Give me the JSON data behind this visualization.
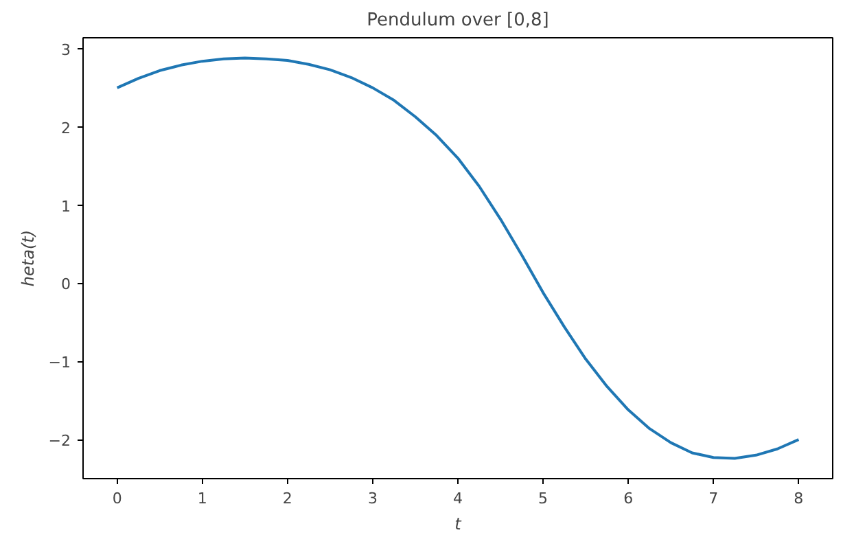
{
  "chart_data": {
    "type": "line",
    "title": "Pendulum over [0,8]",
    "xlabel": "t",
    "ylabel": "heta(t)",
    "x": [
      0,
      0.25,
      0.5,
      0.75,
      1,
      1.25,
      1.5,
      1.75,
      2,
      2.25,
      2.5,
      2.75,
      3,
      3.25,
      3.5,
      3.75,
      4,
      4.25,
      4.5,
      4.75,
      5,
      5.25,
      5.5,
      5.75,
      6,
      6.25,
      6.5,
      6.75,
      7,
      7.25,
      7.5,
      7.75,
      8
    ],
    "series": [
      {
        "color": "#1f77b4",
        "values": [
          2.5,
          2.62,
          2.72,
          2.79,
          2.84,
          2.87,
          2.88,
          2.87,
          2.85,
          2.8,
          2.73,
          2.63,
          2.5,
          2.34,
          2.13,
          1.89,
          1.6,
          1.24,
          0.82,
          0.36,
          -0.12,
          -0.56,
          -0.97,
          -1.32,
          -1.62,
          -1.86,
          -2.04,
          -2.17,
          -2.23,
          -2.24,
          -2.2,
          -2.12,
          -2.0
        ]
      }
    ],
    "xlim": [
      -0.4,
      8.4
    ],
    "ylim": [
      -2.5,
      3.14
    ],
    "xticks": [
      0,
      1,
      2,
      3,
      4,
      5,
      6,
      7,
      8
    ],
    "yticks": [
      -2,
      -1,
      0,
      1,
      2,
      3
    ],
    "grid": false,
    "marker": "none",
    "line_style": "solid"
  }
}
